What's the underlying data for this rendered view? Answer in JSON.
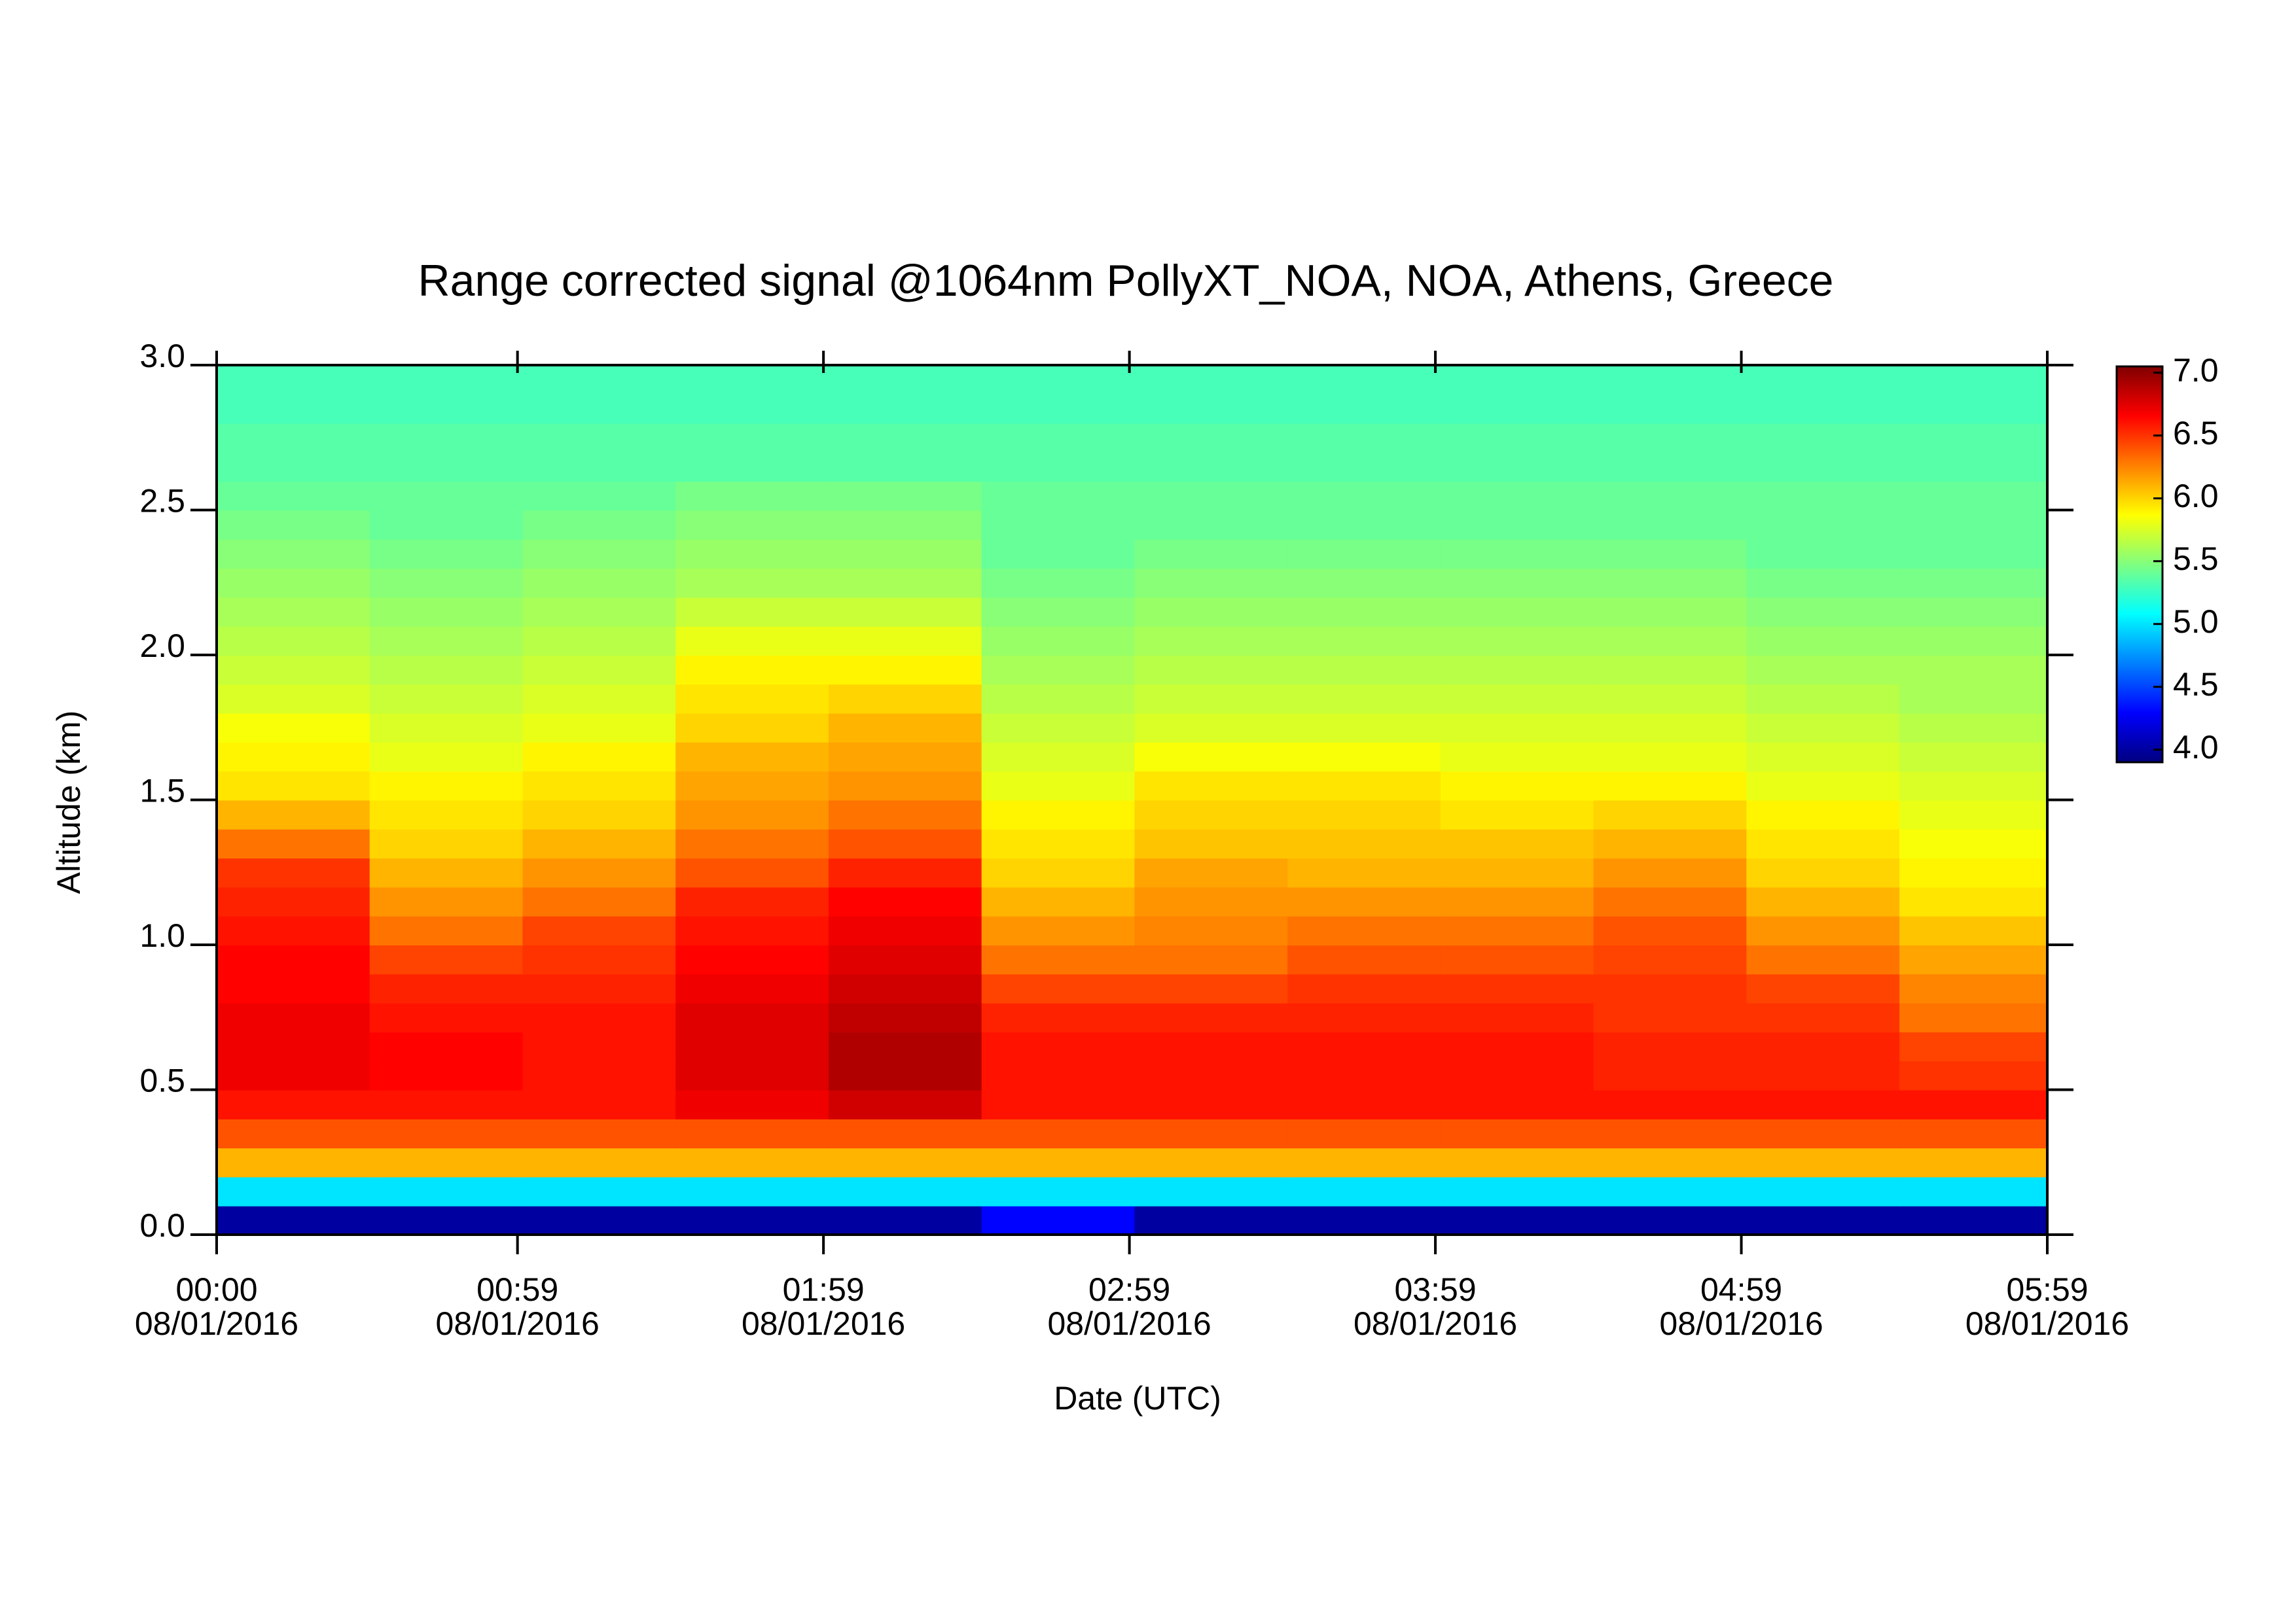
{
  "chart_data": {
    "type": "heatmap",
    "title": "Range corrected signal @1064nm  PollyXT_NOA, NOA, Athens, Greece",
    "x_label": "Date (UTC)",
    "y_label": "Altitude (km)",
    "colormap": "jet",
    "xlim": [
      0,
      359
    ],
    "ylim": [
      0,
      3.0
    ],
    "zlim": [
      3.9,
      7.05
    ],
    "xticks": [
      {
        "value": 0,
        "label": "00:00",
        "date": "08/01/2016"
      },
      {
        "value": 59,
        "label": "00:59",
        "date": "08/01/2016"
      },
      {
        "value": 119,
        "label": "01:59",
        "date": "08/01/2016"
      },
      {
        "value": 179,
        "label": "02:59",
        "date": "08/01/2016"
      },
      {
        "value": 239,
        "label": "03:59",
        "date": "08/01/2016"
      },
      {
        "value": 299,
        "label": "04:59",
        "date": "08/01/2016"
      },
      {
        "value": 359,
        "label": "05:59",
        "date": "08/01/2016"
      }
    ],
    "yticks": [
      {
        "value": 0,
        "label": "0.0"
      },
      0.5,
      {
        "value": 1,
        "label": "1.0"
      },
      1.5,
      {
        "value": 2,
        "label": "2.0"
      },
      2.5,
      {
        "value": 3,
        "label": "3.0"
      }
    ],
    "zticks": [
      {
        "value": 4,
        "label": "4.0"
      },
      4.5,
      {
        "value": 5,
        "label": "5.0"
      },
      5.5,
      {
        "value": 6,
        "label": "6.0"
      },
      6.5,
      {
        "value": 7,
        "label": "7.0"
      }
    ],
    "x": [
      15,
      45,
      75,
      105,
      135,
      165,
      195,
      225,
      255,
      285,
      315,
      345
    ],
    "y": [
      0.05,
      0.15,
      0.25,
      0.35,
      0.45,
      0.55,
      0.65,
      0.75,
      0.85,
      0.95,
      1.05,
      1.15,
      1.25,
      1.35,
      1.45,
      1.55,
      1.65,
      1.75,
      1.85,
      1.95,
      2.05,
      2.15,
      2.25,
      2.35,
      2.45,
      2.55,
      2.65,
      2.75,
      2.85,
      2.95
    ],
    "z": [
      [
        4.0,
        4.0,
        4.0,
        4.0,
        4.0,
        4.3,
        4.0,
        4.0,
        4.0,
        4.0,
        4.0,
        4.0
      ],
      [
        5.0,
        5.0,
        5.0,
        5.0,
        5.0,
        5.0,
        5.0,
        5.0,
        5.0,
        5.0,
        5.0,
        5.0
      ],
      [
        6.1,
        6.1,
        6.1,
        6.1,
        6.1,
        6.1,
        6.1,
        6.1,
        6.1,
        6.1,
        6.1,
        6.1
      ],
      [
        6.4,
        6.4,
        6.4,
        6.4,
        6.4,
        6.4,
        6.4,
        6.4,
        6.4,
        6.4,
        6.4,
        6.4
      ],
      [
        6.6,
        6.6,
        6.6,
        6.7,
        6.8,
        6.6,
        6.6,
        6.6,
        6.6,
        6.6,
        6.6,
        6.6
      ],
      [
        6.7,
        6.65,
        6.6,
        6.75,
        6.9,
        6.6,
        6.6,
        6.6,
        6.6,
        6.55,
        6.55,
        6.5
      ],
      [
        6.7,
        6.65,
        6.6,
        6.75,
        6.9,
        6.6,
        6.6,
        6.6,
        6.6,
        6.55,
        6.55,
        6.45
      ],
      [
        6.7,
        6.6,
        6.6,
        6.75,
        6.85,
        6.55,
        6.55,
        6.55,
        6.55,
        6.5,
        6.5,
        6.3
      ],
      [
        6.65,
        6.55,
        6.55,
        6.7,
        6.8,
        6.45,
        6.45,
        6.5,
        6.5,
        6.5,
        6.45,
        6.25
      ],
      [
        6.65,
        6.45,
        6.5,
        6.65,
        6.75,
        6.3,
        6.3,
        6.4,
        6.4,
        6.45,
        6.3,
        6.15
      ],
      [
        6.6,
        6.3,
        6.45,
        6.6,
        6.7,
        6.2,
        6.25,
        6.3,
        6.3,
        6.4,
        6.2,
        6.05
      ],
      [
        6.55,
        6.2,
        6.3,
        6.55,
        6.65,
        6.1,
        6.2,
        6.2,
        6.2,
        6.3,
        6.1,
        5.95
      ],
      [
        6.5,
        6.1,
        6.2,
        6.4,
        6.55,
        6.0,
        6.15,
        6.1,
        6.1,
        6.2,
        6.0,
        5.9
      ],
      [
        6.3,
        6.0,
        6.1,
        6.3,
        6.4,
        5.95,
        6.05,
        6.05,
        6.05,
        6.1,
        5.95,
        5.85
      ],
      [
        6.1,
        5.95,
        6.0,
        6.2,
        6.3,
        5.9,
        6.0,
        6.0,
        5.95,
        6.0,
        5.9,
        5.8
      ],
      [
        5.95,
        5.9,
        5.95,
        6.15,
        6.2,
        5.8,
        5.95,
        5.95,
        5.9,
        5.9,
        5.8,
        5.75
      ],
      [
        5.9,
        5.8,
        5.9,
        6.1,
        6.15,
        5.75,
        5.85,
        5.85,
        5.8,
        5.8,
        5.75,
        5.7
      ],
      [
        5.85,
        5.75,
        5.8,
        6.0,
        6.1,
        5.7,
        5.75,
        5.75,
        5.75,
        5.75,
        5.7,
        5.65
      ],
      [
        5.75,
        5.7,
        5.75,
        5.95,
        6.0,
        5.65,
        5.7,
        5.7,
        5.7,
        5.7,
        5.65,
        5.6
      ],
      [
        5.7,
        5.65,
        5.7,
        5.9,
        5.9,
        5.6,
        5.65,
        5.65,
        5.65,
        5.65,
        5.6,
        5.6
      ],
      [
        5.65,
        5.6,
        5.65,
        5.8,
        5.8,
        5.55,
        5.6,
        5.6,
        5.6,
        5.6,
        5.55,
        5.55
      ],
      [
        5.6,
        5.55,
        5.6,
        5.7,
        5.7,
        5.5,
        5.55,
        5.55,
        5.55,
        5.55,
        5.5,
        5.5
      ],
      [
        5.55,
        5.5,
        5.55,
        5.6,
        5.6,
        5.45,
        5.5,
        5.5,
        5.5,
        5.5,
        5.45,
        5.45
      ],
      [
        5.5,
        5.45,
        5.5,
        5.55,
        5.55,
        5.4,
        5.45,
        5.45,
        5.45,
        5.45,
        5.4,
        5.4
      ],
      [
        5.45,
        5.4,
        5.45,
        5.5,
        5.5,
        5.4,
        5.4,
        5.4,
        5.4,
        5.4,
        5.4,
        5.4
      ],
      [
        5.4,
        5.4,
        5.4,
        5.45,
        5.45,
        5.4,
        5.4,
        5.4,
        5.4,
        5.4,
        5.4,
        5.4
      ],
      [
        5.35,
        5.35,
        5.35,
        5.35,
        5.35,
        5.35,
        5.35,
        5.35,
        5.35,
        5.35,
        5.35,
        5.35
      ],
      [
        5.35,
        5.35,
        5.35,
        5.35,
        5.35,
        5.35,
        5.35,
        5.35,
        5.35,
        5.35,
        5.35,
        5.35
      ],
      [
        5.3,
        5.3,
        5.3,
        5.3,
        5.3,
        5.3,
        5.3,
        5.3,
        5.3,
        5.3,
        5.3,
        5.3
      ],
      [
        5.3,
        5.3,
        5.3,
        5.3,
        5.3,
        5.3,
        5.3,
        5.3,
        5.3,
        5.3,
        5.3,
        5.3
      ]
    ]
  }
}
